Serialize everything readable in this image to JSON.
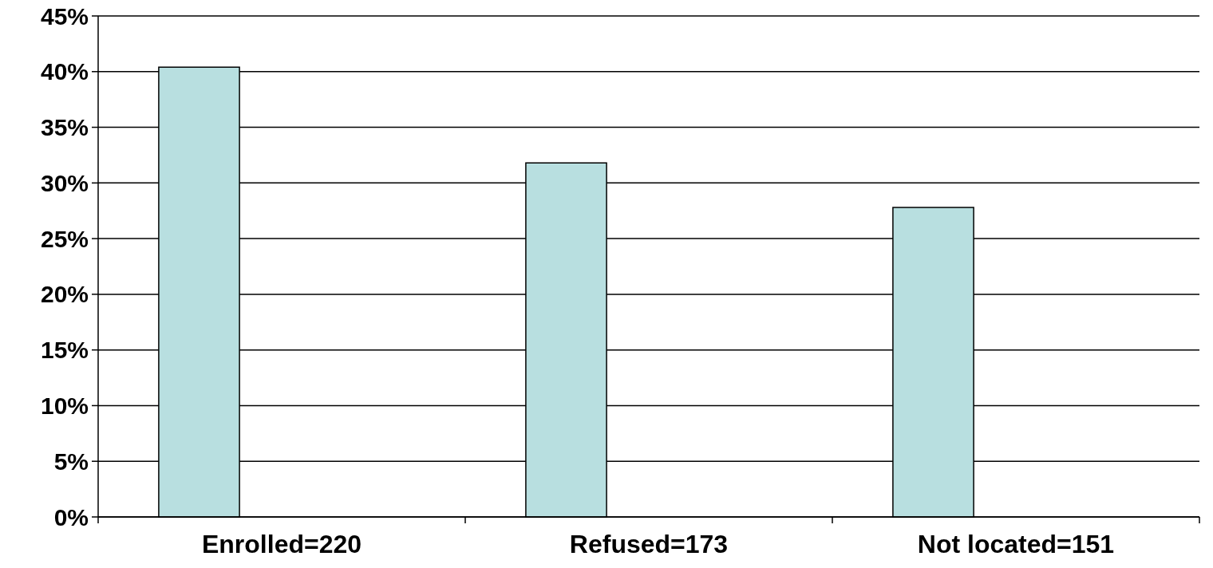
{
  "chart_data": {
    "type": "bar",
    "categories": [
      "Enrolled=220",
      "Refused=173",
      "Not located=151"
    ],
    "values": [
      40.4,
      31.8,
      27.8
    ],
    "color": "#b8dfe0",
    "ylim": [
      0,
      45
    ],
    "yticks": [
      {
        "value": 0,
        "label": "0%"
      },
      {
        "value": 5,
        "label": "5%"
      },
      {
        "value": 10,
        "label": "10%"
      },
      {
        "value": 15,
        "label": "15%"
      },
      {
        "value": 20,
        "label": "20%"
      },
      {
        "value": 25,
        "label": "25%"
      },
      {
        "value": 30,
        "label": "30%"
      },
      {
        "value": 35,
        "label": "35%"
      },
      {
        "value": 40,
        "label": "40%"
      },
      {
        "value": 45,
        "label": "45%"
      }
    ],
    "grid": "y"
  }
}
